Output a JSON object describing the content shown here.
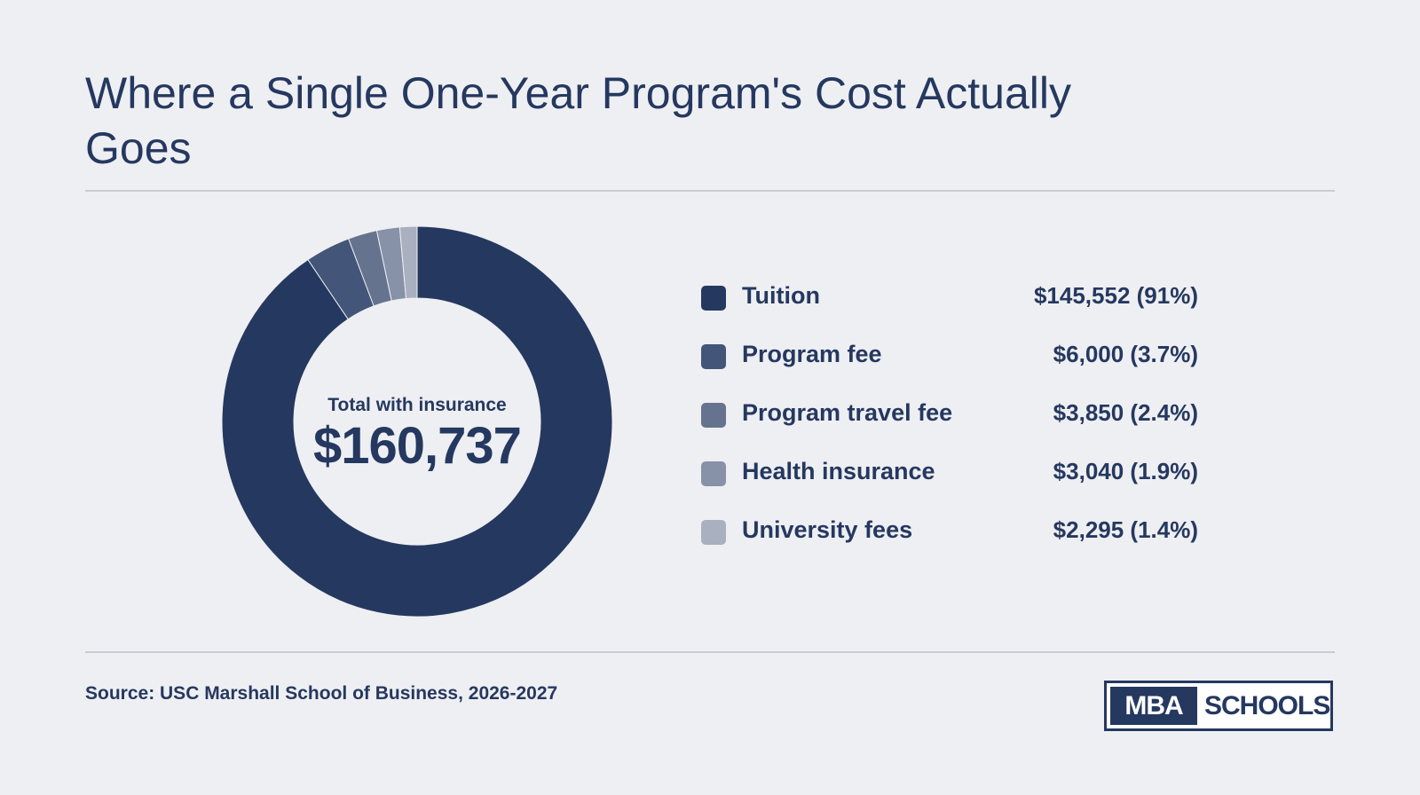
{
  "title": "Where a Single One-Year Program's Cost Actually Goes",
  "center": {
    "label": "Total with insurance",
    "value": "$160,737"
  },
  "source": "Source: USC Marshall School of Business, 2026-2027",
  "logo": {
    "left": "MBA",
    "right": "SCHOOLS"
  },
  "colors": {
    "background": "#eeeff2",
    "text": "#253860",
    "tuition": "#253860",
    "program_fee": "#435578",
    "program_travel_fee": "#66738f",
    "health_insurance": "#8791a8",
    "university_fees": "#a9b0c0"
  },
  "chart_data": {
    "type": "pie",
    "variant": "donut",
    "title": "Where a Single One-Year Program's Cost Actually Goes",
    "total": 160737,
    "categories": [
      "Tuition",
      "Program fee",
      "Program travel fee",
      "Health insurance",
      "University fees"
    ],
    "values": [
      145552,
      6000,
      3850,
      3040,
      2295
    ],
    "labels": [
      "$145,552 (91%)",
      "$6,000 (3.7%)",
      "$3,850 (2.4%)",
      "$3,040 (1.9%)",
      "$2,295 (1.4%)"
    ],
    "colors": [
      "#253860",
      "#435578",
      "#66738f",
      "#8791a8",
      "#a9b0c0"
    ],
    "legend": "right"
  }
}
